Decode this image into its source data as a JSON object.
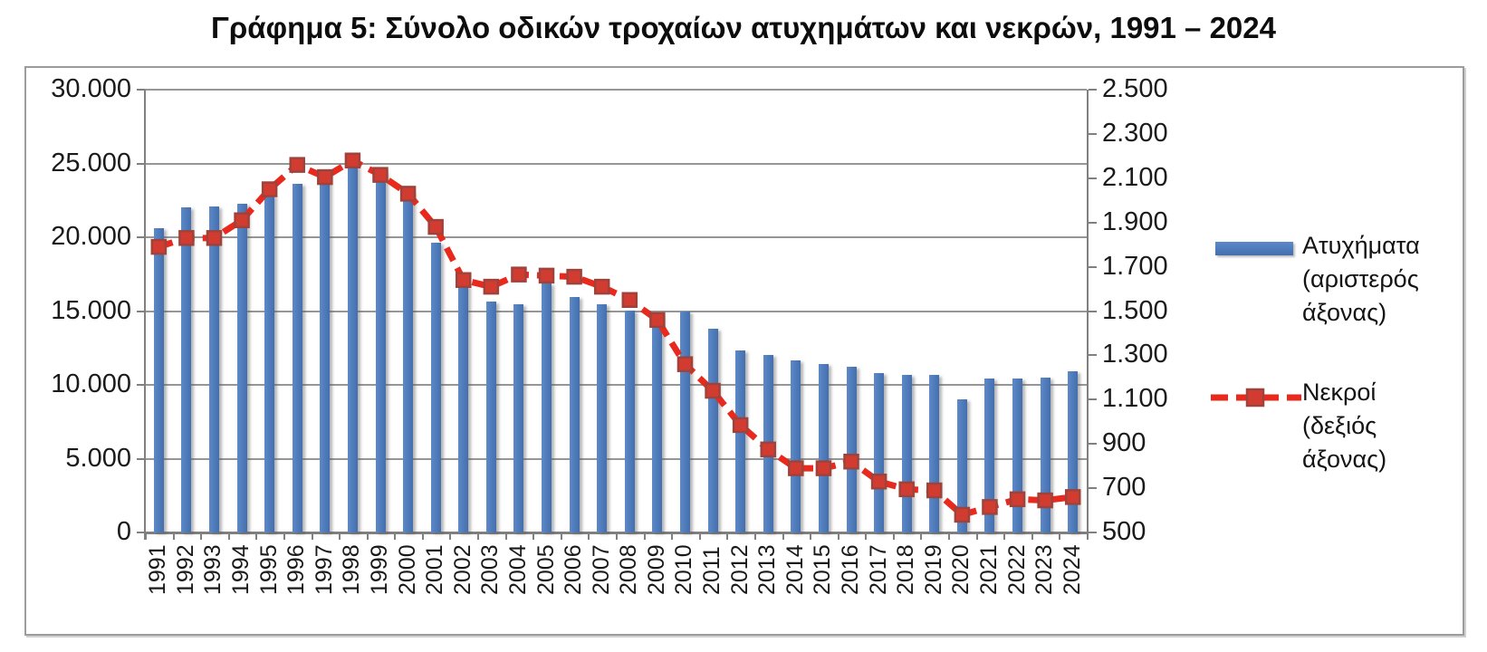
{
  "title": "Γράφημα 5: Σύνολο οδικών τροχαίων ατυχημάτων και νεκρών, 1991 – 2024",
  "colors": {
    "bar_blue": "#4a76b8",
    "line_red": "#e8291d",
    "marker_fill": "#d23c30",
    "marker_border": "#9e433b",
    "grid_gray": "#969696"
  },
  "legend": {
    "accidents": {
      "lines": [
        "Ατυχήματα",
        "(αριστερός",
        "άξονας)"
      ]
    },
    "deaths": {
      "lines": [
        "Νεκροί",
        "(δεξιός",
        "άξονας)"
      ]
    }
  },
  "chart_data": {
    "type": "bar",
    "subtype": "combo-bar-line-dual-axis",
    "title": "Γράφημα 5: Σύνολο οδικών τροχαίων ατυχημάτων και νεκρών, 1991 – 2024",
    "grid": true,
    "legend_position": "right",
    "categories": [
      "1991",
      "1992",
      "1993",
      "1994",
      "1995",
      "1996",
      "1997",
      "1998",
      "1999",
      "2000",
      "2001",
      "2002",
      "2003",
      "2004",
      "2005",
      "2006",
      "2007",
      "2008",
      "2009",
      "2010",
      "2011",
      "2012",
      "2013",
      "2014",
      "2015",
      "2016",
      "2017",
      "2018",
      "2019",
      "2020",
      "2021",
      "2022",
      "2023",
      "2024"
    ],
    "series": [
      {
        "name": "Ατυχήματα (αριστερός άξονας)",
        "type": "bar",
        "axis": "left",
        "values": [
          20600,
          22000,
          22100,
          22250,
          22900,
          23650,
          24300,
          24900,
          24450,
          23100,
          19650,
          16750,
          15650,
          15450,
          16900,
          15950,
          15450,
          15050,
          14750,
          15000,
          13800,
          12350,
          12050,
          11650,
          11400,
          11250,
          10800,
          10700,
          10650,
          9000,
          10400,
          10450,
          10500,
          10950
        ]
      },
      {
        "name": "Νεκροί (δεξιός άξονας)",
        "type": "line",
        "axis": "right",
        "values": [
          1790,
          1830,
          1830,
          1910,
          2050,
          2160,
          2105,
          2180,
          2115,
          2030,
          1880,
          1640,
          1610,
          1665,
          1660,
          1655,
          1610,
          1550,
          1460,
          1260,
          1140,
          985,
          875,
          790,
          790,
          820,
          730,
          695,
          690,
          580,
          615,
          650,
          645,
          660
        ]
      }
    ],
    "left_axis": {
      "min": 0,
      "max": 30000,
      "step": 5000,
      "tick_labels": [
        "30.000",
        "25.000",
        "20.000",
        "15.000",
        "10.000",
        "5.000",
        "0"
      ]
    },
    "right_axis": {
      "min": 500,
      "max": 2500,
      "step": 200,
      "tick_labels": [
        "2.500",
        "2.300",
        "2.100",
        "1.900",
        "1.700",
        "1.500",
        "1.300",
        "1.100",
        "900",
        "700",
        "500"
      ]
    }
  }
}
